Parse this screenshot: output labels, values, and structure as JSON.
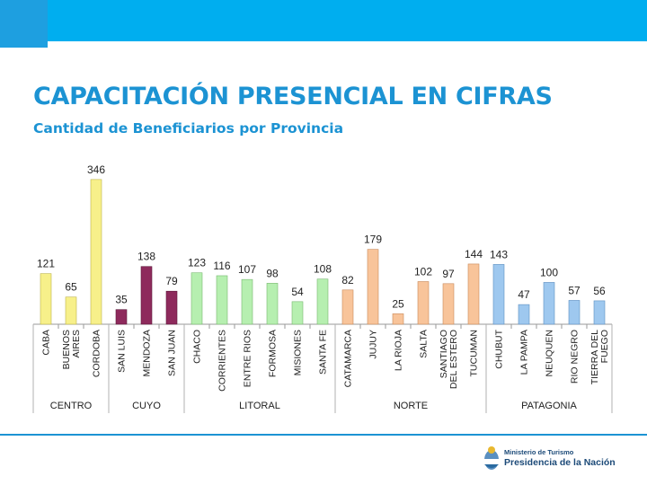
{
  "header": {
    "title": "CAPACITACIÓN PRESENCIAL EN CIFRAS",
    "subtitle": "Cantidad de Beneficiarios por Provincia"
  },
  "chart_data": {
    "type": "bar",
    "title": "Cantidad de Beneficiarios por Provincia",
    "ylim": [
      0,
      350
    ],
    "grid": false,
    "categories": [
      "CABA",
      "BUENOS AIRES",
      "CORDOBA",
      "SAN LUIS",
      "MENDOZA",
      "SAN JUAN",
      "CHACO",
      "CORRIENTES",
      "ENTRE RIOS",
      "FORMOSA",
      "MISIONES",
      "SANTA FE",
      "CATAMARCA",
      "JUJUY",
      "LA RIOJA",
      "SALTA",
      "SANTIAGO DEL ESTERO",
      "TUCUMAN",
      "CHUBUT",
      "LA PAMPA",
      "NEUQUEN",
      "RIO NEGRO",
      "TIERRA DEL FUEGO"
    ],
    "category_lines": [
      [
        "CABA"
      ],
      [
        "BUENOS",
        "AIRES"
      ],
      [
        "CORDOBA"
      ],
      [
        "SAN LUIS"
      ],
      [
        "MENDOZA"
      ],
      [
        "SAN JUAN"
      ],
      [
        "CHACO"
      ],
      [
        "CORRIENTES"
      ],
      [
        "ENTRE RIOS"
      ],
      [
        "FORMOSA"
      ],
      [
        "MISIONES"
      ],
      [
        "SANTA FE"
      ],
      [
        "CATAMARCA"
      ],
      [
        "JUJUY"
      ],
      [
        "LA RIOJA"
      ],
      [
        "SALTA"
      ],
      [
        "SANTIAGO",
        "DEL ESTERO"
      ],
      [
        "TUCUMAN"
      ],
      [
        "CHUBUT"
      ],
      [
        "LA PAMPA"
      ],
      [
        "NEUQUEN"
      ],
      [
        "RIO NEGRO"
      ],
      [
        "TIERRA DEL",
        "FUEGO"
      ]
    ],
    "values": [
      121,
      65,
      346,
      35,
      138,
      79,
      123,
      116,
      107,
      98,
      54,
      108,
      82,
      179,
      25,
      102,
      97,
      144,
      143,
      47,
      100,
      57,
      56
    ],
    "groups": [
      {
        "name": "CENTRO",
        "count": 3,
        "color": "#f7f08a",
        "stroke": "#bdb44a"
      },
      {
        "name": "CUYO",
        "count": 3,
        "color": "#8e2a5c",
        "stroke": "#5e1a3c"
      },
      {
        "name": "LITORAL",
        "count": 6,
        "color": "#b6efb0",
        "stroke": "#78b870"
      },
      {
        "name": "NORTE",
        "count": 6,
        "color": "#f8c49a",
        "stroke": "#c88a5a"
      },
      {
        "name": "PATAGONIA",
        "count": 5,
        "color": "#9ec8ef",
        "stroke": "#5e8fc0"
      }
    ]
  },
  "footer": {
    "logo_line1": "Ministerio de Turismo",
    "logo_line2": "Presidencia de la Nación"
  }
}
